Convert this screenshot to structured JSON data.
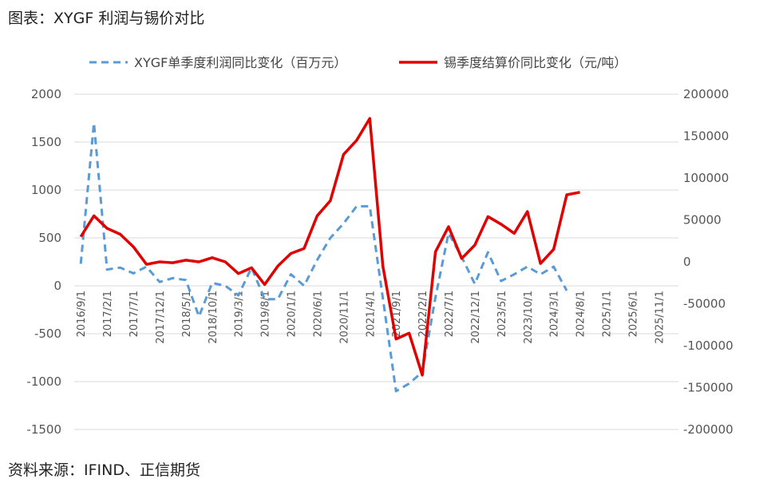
{
  "title": "图表：XYGF 利润与锡价对比",
  "source": "资料来源：IFIND、正信期货",
  "colors": {
    "profit": "#5B9BD5",
    "tin": "#E00000",
    "grid": "#D9D9D9"
  },
  "chart_data": {
    "type": "line",
    "x": [
      "2016/9/1",
      "2016/12/1",
      "2017/2/1",
      "2017/5/1",
      "2017/7/1",
      "2017/9/1",
      "2017/12/1",
      "2018/3/1",
      "2018/5/1",
      "2018/7/1",
      "2018/10/1",
      "2018/12/1",
      "2019/3/1",
      "2019/5/1",
      "2019/8/1",
      "2019/10/1",
      "2020/1/1",
      "2020/3/1",
      "2020/6/1",
      "2020/8/1",
      "2020/11/1",
      "2021/1/1",
      "2021/4/1",
      "2021/6/1",
      "2021/9/1",
      "2021/11/1",
      "2022/2/1",
      "2022/4/1",
      "2022/7/1",
      "2022/9/1",
      "2022/12/1",
      "2023/2/1",
      "2023/5/1",
      "2023/7/1",
      "2023/10/1",
      "2023/12/1",
      "2024/3/1",
      "2024/5/1",
      "2024/8/1",
      "2024/10/1",
      "2025/1/1",
      "2025/3/1",
      "2025/6/1",
      "2025/8/1",
      "2025/11/1",
      "2026/1/1"
    ],
    "x_tick_labels": [
      "2016/9/1",
      "2017/2/1",
      "2017/7/1",
      "2017/12/1",
      "2018/5/1",
      "2018/10/1",
      "2019/3/1",
      "2019/8/1",
      "2020/1/1",
      "2020/6/1",
      "2020/11/1",
      "2021/4/1",
      "2021/9/1",
      "2022/2/1",
      "2022/7/1",
      "2022/12/1",
      "2023/5/1",
      "2023/10/1",
      "2024/3/1",
      "2024/8/1",
      "2025/1/1",
      "2025/6/1",
      "2025/11/1"
    ],
    "y_left": {
      "ylim": [
        -1500,
        2000
      ],
      "ticks": [
        "2000",
        "1500",
        "1000",
        "500",
        "0",
        "-500",
        "-1000",
        "-1500"
      ]
    },
    "y_right": {
      "ylim": [
        -200000,
        200000
      ],
      "ticks": [
        "200000",
        "150000",
        "100000",
        "50000",
        "0",
        "-50000",
        "-100000",
        "-150000",
        "-200000"
      ]
    },
    "grid": true,
    "legend_position": "top-center",
    "series": [
      {
        "name": "XYGF单季度利润同比变化（百万元）",
        "axis": "left",
        "style": "dashed",
        "values": [
          230,
          1700,
          170,
          190,
          130,
          200,
          40,
          80,
          60,
          -320,
          30,
          0,
          -100,
          190,
          -140,
          -140,
          120,
          0,
          270,
          500,
          650,
          830,
          830,
          -130,
          -1100,
          -1020,
          -900,
          -120,
          550,
          300,
          20,
          350,
          50,
          120,
          200,
          120,
          200,
          -50,
          null,
          null,
          null,
          null,
          null,
          null,
          null,
          null
        ]
      },
      {
        "name": "锡季度结算价同比变化（元/吨）",
        "axis": "right",
        "style": "solid",
        "values": [
          30000,
          55000,
          40000,
          33000,
          18000,
          -3000,
          0,
          -1000,
          2000,
          0,
          5000,
          0,
          -14000,
          -7000,
          -27000,
          -5000,
          10000,
          16000,
          55000,
          73000,
          128000,
          145000,
          171000,
          -5000,
          -92000,
          -85000,
          -135000,
          12000,
          42000,
          4000,
          20000,
          54000,
          45000,
          34000,
          60000,
          -2000,
          15000,
          80000,
          83000,
          null,
          null,
          null,
          null,
          null,
          null,
          null
        ]
      }
    ]
  }
}
